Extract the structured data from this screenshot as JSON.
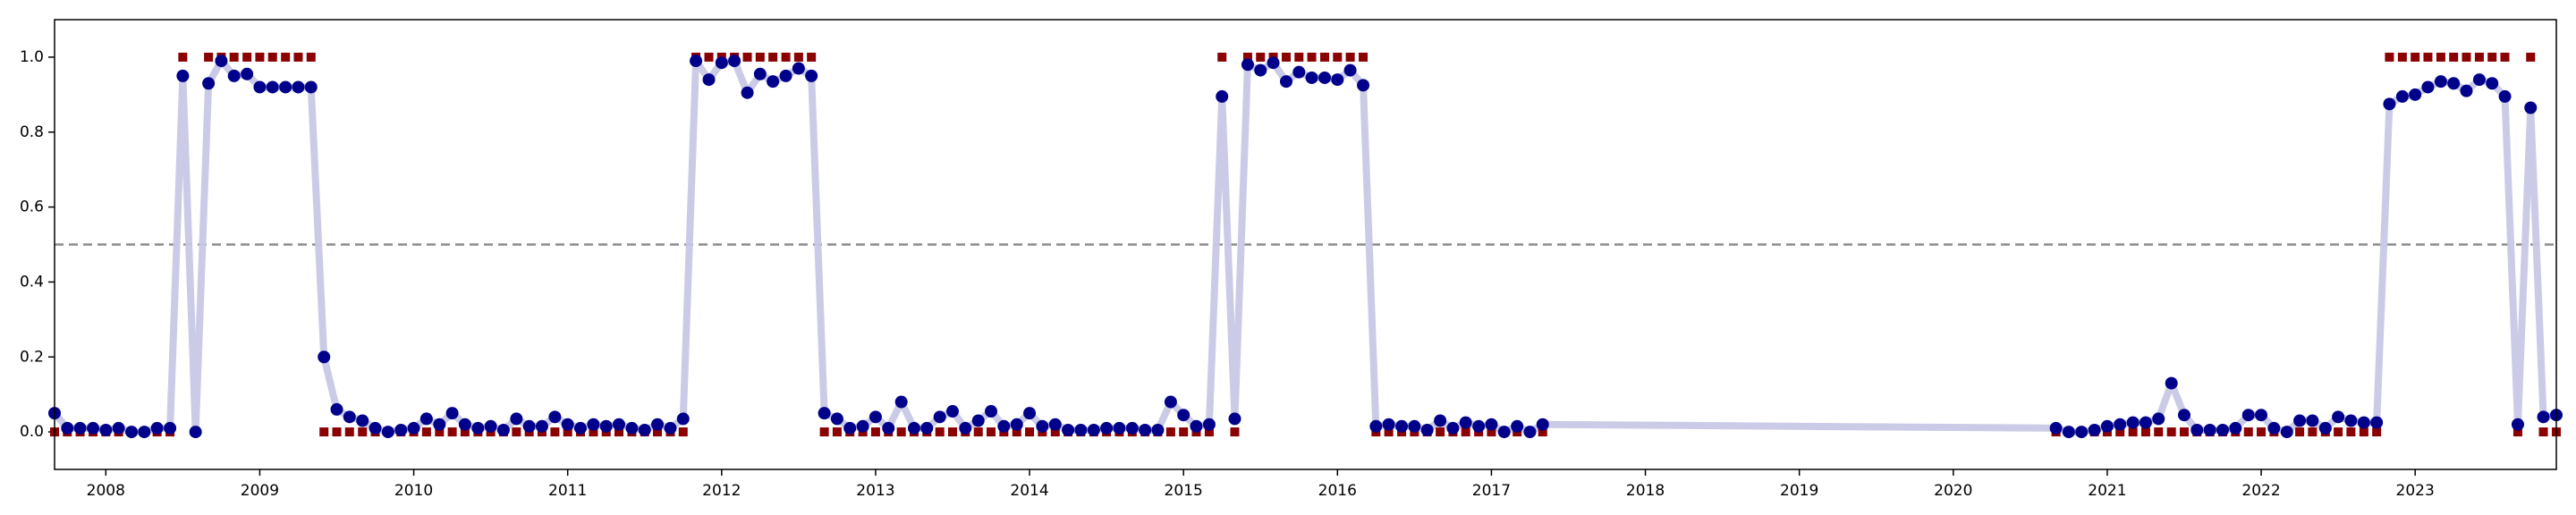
{
  "chart_data": {
    "type": "line",
    "x": [
      2007.667,
      2007.75,
      2007.833,
      2007.917,
      2008,
      2008.083,
      2008.167,
      2008.25,
      2008.333,
      2008.417,
      2008.5,
      2008.583,
      2008.667,
      2008.75,
      2008.833,
      2008.917,
      2009,
      2009.083,
      2009.167,
      2009.25,
      2009.333,
      2009.417,
      2009.5,
      2009.583,
      2009.667,
      2009.75,
      2009.833,
      2009.917,
      2010,
      2010.083,
      2010.167,
      2010.25,
      2010.333,
      2010.417,
      2010.5,
      2010.583,
      2010.667,
      2010.75,
      2010.833,
      2010.917,
      2011,
      2011.083,
      2011.167,
      2011.25,
      2011.333,
      2011.417,
      2011.5,
      2011.583,
      2011.667,
      2011.75,
      2011.833,
      2011.917,
      2012,
      2012.083,
      2012.167,
      2012.25,
      2012.333,
      2012.417,
      2012.5,
      2012.583,
      2012.667,
      2012.75,
      2012.833,
      2012.917,
      2013,
      2013.083,
      2013.167,
      2013.25,
      2013.333,
      2013.417,
      2013.5,
      2013.583,
      2013.667,
      2013.75,
      2013.833,
      2013.917,
      2014,
      2014.083,
      2014.167,
      2014.25,
      2014.333,
      2014.417,
      2014.5,
      2014.583,
      2014.667,
      2014.75,
      2014.833,
      2014.917,
      2015,
      2015.083,
      2015.167,
      2015.25,
      2015.333,
      2015.417,
      2015.5,
      2015.583,
      2015.667,
      2015.75,
      2015.833,
      2015.917,
      2016,
      2016.083,
      2016.167,
      2016.25,
      2016.333,
      2016.417,
      2016.5,
      2016.583,
      2016.667,
      2016.75,
      2016.833,
      2016.917,
      2017,
      2017.083,
      2017.167,
      2017.25,
      2017.333,
      2020.667,
      2020.75,
      2020.833,
      2020.917,
      2021,
      2021.083,
      2021.167,
      2021.25,
      2021.333,
      2021.417,
      2021.5,
      2021.583,
      2021.667,
      2021.75,
      2021.833,
      2021.917,
      2022,
      2022.083,
      2022.167,
      2022.25,
      2022.333,
      2022.417,
      2022.5,
      2022.583,
      2022.667,
      2022.75,
      2022.833,
      2022.917,
      2023,
      2023.083,
      2023.167,
      2023.25,
      2023.333,
      2023.417,
      2023.5,
      2023.583,
      2023.667,
      2023.75,
      2023.833,
      2023.917
    ],
    "series": [
      {
        "color": "#00008b",
        "line_color": "#c8c8e6",
        "marker": "circle",
        "values": [
          0.05,
          0.01,
          0.01,
          0.01,
          0.005,
          0.01,
          0.0,
          0.0,
          0.01,
          0.01,
          0.95,
          0.0,
          0.93,
          0.99,
          0.95,
          0.955,
          0.92,
          0.92,
          0.92,
          0.92,
          0.92,
          0.2,
          0.06,
          0.04,
          0.03,
          0.01,
          0.0,
          0.005,
          0.01,
          0.035,
          0.02,
          0.05,
          0.02,
          0.01,
          0.015,
          0.005,
          0.035,
          0.015,
          0.015,
          0.04,
          0.02,
          0.01,
          0.02,
          0.015,
          0.02,
          0.01,
          0.005,
          0.02,
          0.01,
          0.035,
          0.99,
          0.94,
          0.985,
          0.99,
          0.905,
          0.955,
          0.935,
          0.95,
          0.97,
          0.95,
          0.05,
          0.035,
          0.01,
          0.015,
          0.04,
          0.01,
          0.08,
          0.01,
          0.01,
          0.04,
          0.055,
          0.01,
          0.03,
          0.055,
          0.015,
          0.02,
          0.05,
          0.015,
          0.02,
          0.005,
          0.005,
          0.005,
          0.01,
          0.01,
          0.01,
          0.005,
          0.005,
          0.08,
          0.045,
          0.015,
          0.02,
          0.895,
          0.035,
          0.98,
          0.965,
          0.985,
          0.935,
          0.96,
          0.945,
          0.945,
          0.94,
          0.965,
          0.925,
          0.015,
          0.02,
          0.015,
          0.015,
          0.005,
          0.03,
          0.01,
          0.025,
          0.015,
          0.02,
          0.0,
          0.015,
          0.0,
          0.02,
          0.01,
          0.0,
          0.0,
          0.005,
          0.015,
          0.02,
          0.025,
          0.025,
          0.035,
          0.13,
          0.045,
          0.005,
          0.005,
          0.005,
          0.01,
          0.045,
          0.045,
          0.01,
          0.0,
          0.03,
          0.03,
          0.01,
          0.04,
          0.03,
          0.025,
          0.025,
          0.875,
          0.895,
          0.9,
          0.92,
          0.935,
          0.93,
          0.91,
          0.94,
          0.93,
          0.895,
          0.02,
          0.865,
          0.04,
          0.045
        ]
      },
      {
        "color": "#8b0000",
        "marker": "square",
        "values": [
          0,
          0,
          0,
          0,
          0,
          0,
          0,
          0,
          0,
          0,
          1,
          0,
          1,
          1,
          1,
          1,
          1,
          1,
          1,
          1,
          1,
          0,
          0,
          0,
          0,
          0,
          0,
          0,
          0,
          0,
          0,
          0,
          0,
          0,
          0,
          0,
          0,
          0,
          0,
          0,
          0,
          0,
          0,
          0,
          0,
          0,
          0,
          0,
          0,
          0,
          1,
          1,
          1,
          1,
          1,
          1,
          1,
          1,
          1,
          1,
          0,
          0,
          0,
          0,
          0,
          0,
          0,
          0,
          0,
          0,
          0,
          0,
          0,
          0,
          0,
          0,
          0,
          0,
          0,
          0,
          0,
          0,
          0,
          0,
          0,
          0,
          0,
          0,
          0,
          0,
          0,
          1,
          0,
          1,
          1,
          1,
          1,
          1,
          1,
          1,
          1,
          1,
          1,
          0,
          0,
          0,
          0,
          0,
          0,
          0,
          0,
          0,
          0,
          0,
          0,
          0,
          0,
          0,
          0,
          0,
          0,
          0,
          0,
          0,
          0,
          0,
          0,
          0,
          0,
          0,
          0,
          0,
          0,
          0,
          0,
          0,
          0,
          0,
          0,
          0,
          0,
          0,
          0,
          1,
          1,
          1,
          1,
          1,
          1,
          1,
          1,
          1,
          1,
          0,
          1,
          0,
          0
        ]
      }
    ],
    "threshold": 0.5,
    "threshold_color": "#8c8c8c",
    "xlim": [
      2007.667,
      2023.917
    ],
    "xticks": [
      2008,
      2009,
      2010,
      2011,
      2012,
      2013,
      2014,
      2015,
      2016,
      2017,
      2018,
      2019,
      2020,
      2021,
      2022,
      2023
    ],
    "ylim": [
      -0.1,
      1.1
    ],
    "yticks": [
      {
        "value": 0,
        "label": "0.0"
      },
      0.2,
      0.4,
      0.6,
      0.8,
      {
        "value": 1,
        "label": "1.0"
      }
    ],
    "grid": false
  }
}
